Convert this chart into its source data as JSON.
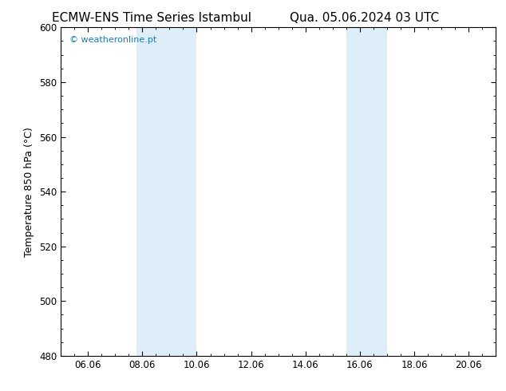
{
  "title_left": "ECMW-ENS Time Series Istambul",
  "title_right": "Qua. 05.06.2024 03 UTC",
  "ylabel": "Temperature 850 hPa (°C)",
  "xlim": [
    5.0,
    21.0
  ],
  "ylim": [
    480,
    600
  ],
  "yticks": [
    480,
    500,
    520,
    540,
    560,
    580,
    600
  ],
  "xticks": [
    6,
    8,
    10,
    12,
    14,
    16,
    18,
    20
  ],
  "xticklabels": [
    "06.06",
    "08.06",
    "10.06",
    "12.06",
    "14.06",
    "16.06",
    "18.06",
    "20.06"
  ],
  "shaded_regions": [
    {
      "x_start": 7.8,
      "x_end": 10.0,
      "color": "#ddeef8"
    },
    {
      "x_start": 15.5,
      "x_end": 16.0,
      "color": "#ddeef8"
    },
    {
      "x_start": 16.0,
      "x_end": 17.0,
      "color": "#ddeef8"
    }
  ],
  "watermark_text": "© weatheronline.pt",
  "watermark_color": "#1a7abf",
  "background_color": "#ffffff",
  "axes_background": "#ffffff",
  "title_fontsize": 11,
  "tick_fontsize": 8.5,
  "ylabel_fontsize": 9,
  "spine_color": "#000000"
}
